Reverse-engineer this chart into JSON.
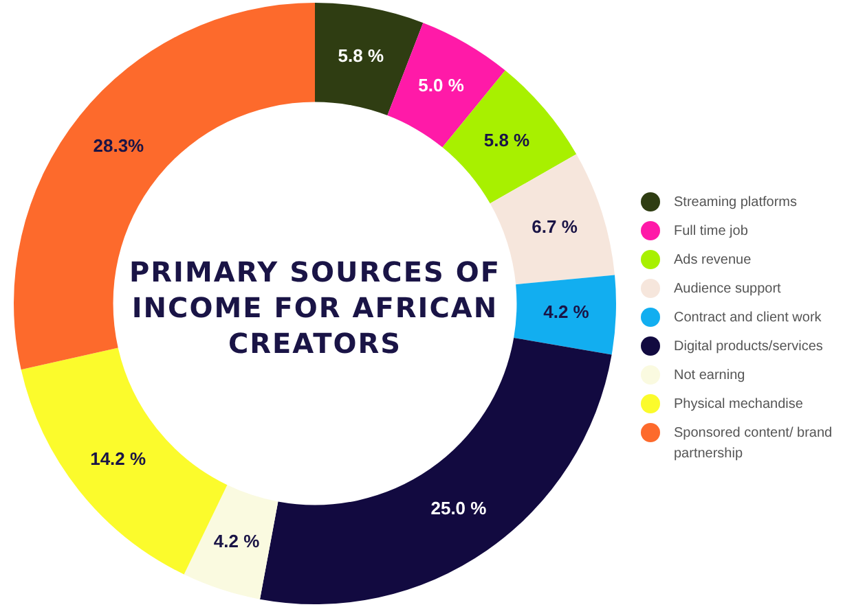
{
  "chart_data": {
    "type": "donut",
    "title": "PRIMARY SOURCES OF INCOME FOR AFRICAN CREATORS",
    "categories": [
      "Streaming platforms",
      "Full time job",
      "Ads revenue",
      "Audience support",
      "Contract and client work",
      "Digital products/services",
      "Not earning",
      "Physical mechandise",
      "Sponsored content/ brand partnership"
    ],
    "values": [
      5.8,
      5.0,
      5.8,
      6.7,
      4.2,
      25.0,
      4.2,
      14.2,
      28.3
    ],
    "value_labels": [
      "5.8 %",
      "5.0 %",
      "5.8 %",
      "6.7 %",
      "4.2 %",
      "25.0 %",
      "4.2 %",
      "14.2 %",
      "28.3%"
    ],
    "colors": [
      "#2f3d12",
      "#ff1aa8",
      "#a8f000",
      "#f6e6dc",
      "#12aef0",
      "#120a40",
      "#fafae0",
      "#fbfb2c",
      "#fd6a2c"
    ],
    "legend": "right"
  }
}
